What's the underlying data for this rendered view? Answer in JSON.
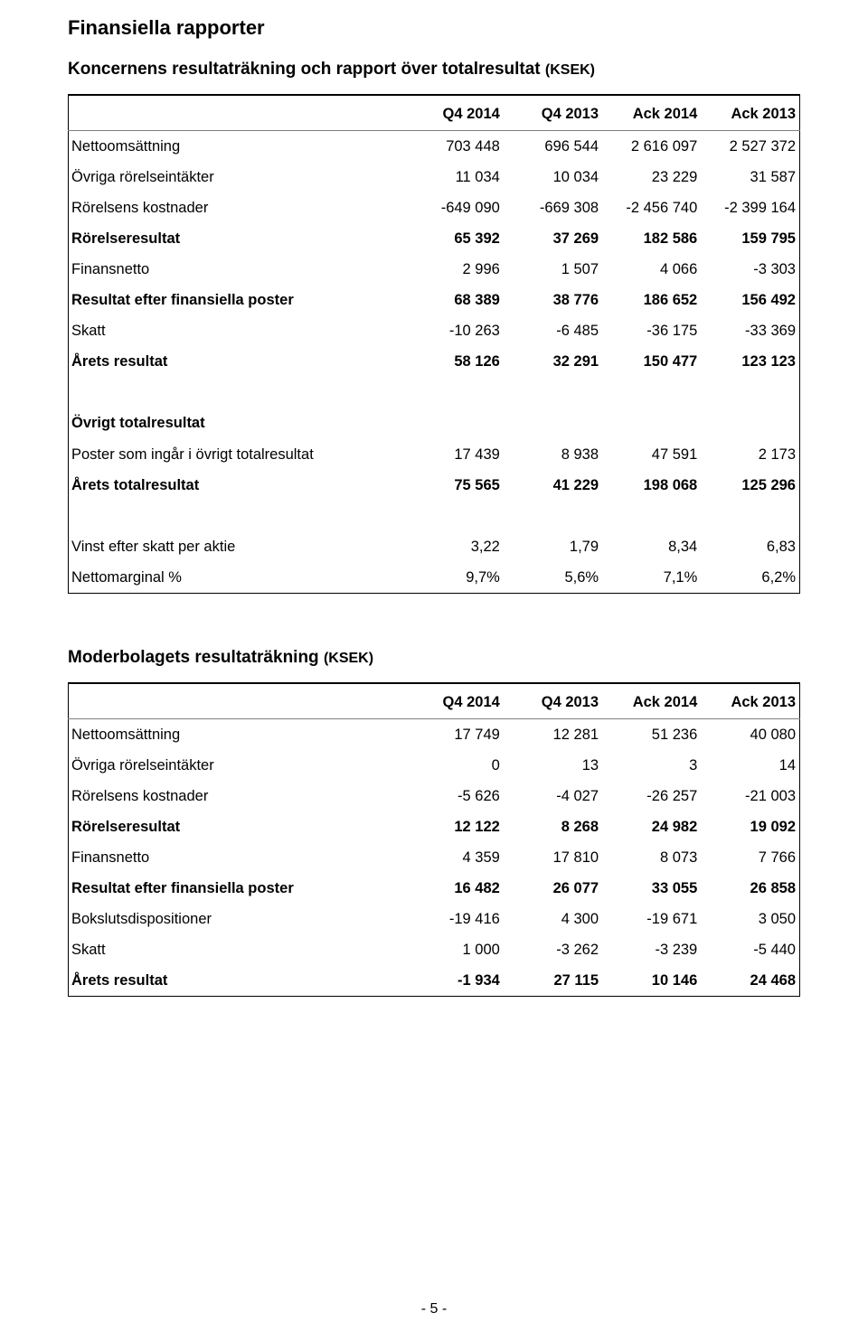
{
  "page": {
    "title": "Finansiella rapporter",
    "page_number": "- 5 -"
  },
  "group_income": {
    "heading_main": "Koncernens resultaträkning och rapport över totalresultat ",
    "heading_unit": "(KSEK)",
    "columns": [
      "Q4 2014",
      "Q4 2013",
      "Ack 2014",
      "Ack 2013"
    ],
    "rows_block1": [
      {
        "label": "Nettoomsättning",
        "bold": false,
        "vals": [
          "703 448",
          "696 544",
          "2 616 097",
          "2 527 372"
        ]
      },
      {
        "label": "Övriga rörelseintäkter",
        "bold": false,
        "vals": [
          "11 034",
          "10 034",
          "23 229",
          "31 587"
        ]
      },
      {
        "label": "Rörelsens kostnader",
        "bold": false,
        "vals": [
          "-649 090",
          "-669 308",
          "-2 456 740",
          "-2 399 164"
        ]
      },
      {
        "label": "Rörelseresultat",
        "bold": true,
        "vals": [
          "65 392",
          "37 269",
          "182 586",
          "159 795"
        ]
      },
      {
        "label": "Finansnetto",
        "bold": false,
        "vals": [
          "2 996",
          "1 507",
          "4 066",
          "-3 303"
        ]
      },
      {
        "label": "Resultat efter finansiella poster",
        "bold": true,
        "vals": [
          "68 389",
          "38 776",
          "186 652",
          "156 492"
        ]
      },
      {
        "label": "Skatt",
        "bold": false,
        "vals": [
          "-10 263",
          "-6 485",
          "-36 175",
          "-33 369"
        ]
      },
      {
        "label": "Årets resultat",
        "bold": true,
        "vals": [
          "58 126",
          "32 291",
          "150 477",
          "123 123"
        ]
      }
    ],
    "block2_heading": "Övrigt totalresultat",
    "rows_block2": [
      {
        "label": "Poster som ingår i övrigt totalresultat",
        "bold": false,
        "vals": [
          "17 439",
          "8 938",
          "47 591",
          "2 173"
        ]
      },
      {
        "label": "Årets totalresultat",
        "bold": true,
        "vals": [
          "75 565",
          "41 229",
          "198 068",
          "125 296"
        ]
      }
    ],
    "rows_block3": [
      {
        "label": "Vinst efter skatt per aktie",
        "bold": false,
        "vals": [
          "3,22",
          "1,79",
          "8,34",
          "6,83"
        ]
      },
      {
        "label": "Nettomarginal %",
        "bold": false,
        "vals": [
          "9,7%",
          "5,6%",
          "7,1%",
          "6,2%"
        ]
      }
    ]
  },
  "parent_income": {
    "heading_main": "Moderbolagets resultaträkning ",
    "heading_unit": "(KSEK)",
    "columns": [
      "Q4 2014",
      "Q4 2013",
      "Ack 2014",
      "Ack 2013"
    ],
    "rows": [
      {
        "label": "Nettoomsättning",
        "bold": false,
        "vals": [
          "17 749",
          "12 281",
          "51 236",
          "40 080"
        ]
      },
      {
        "label": "Övriga rörelseintäkter",
        "bold": false,
        "vals": [
          "0",
          "13",
          "3",
          "14"
        ]
      },
      {
        "label": "Rörelsens kostnader",
        "bold": false,
        "vals": [
          "-5 626",
          "-4 027",
          "-26 257",
          "-21 003"
        ]
      },
      {
        "label": "Rörelseresultat",
        "bold": true,
        "vals": [
          "12 122",
          "8 268",
          "24 982",
          "19 092"
        ]
      },
      {
        "label": "Finansnetto",
        "bold": false,
        "vals": [
          "4 359",
          "17 810",
          "8 073",
          "7 766"
        ]
      },
      {
        "label": "Resultat efter finansiella poster",
        "bold": true,
        "vals": [
          "16 482",
          "26 077",
          "33 055",
          "26 858"
        ]
      },
      {
        "label": "Bokslutsdispositioner",
        "bold": false,
        "vals": [
          "-19 416",
          "4 300",
          "-19 671",
          "3 050"
        ]
      },
      {
        "label": "Skatt",
        "bold": false,
        "vals": [
          "1 000",
          "-3 262",
          "-3 239",
          "-5 440"
        ]
      },
      {
        "label": "Årets resultat",
        "bold": true,
        "vals": [
          "-1 934",
          "27 115",
          "10 146",
          "24 468"
        ]
      }
    ]
  }
}
